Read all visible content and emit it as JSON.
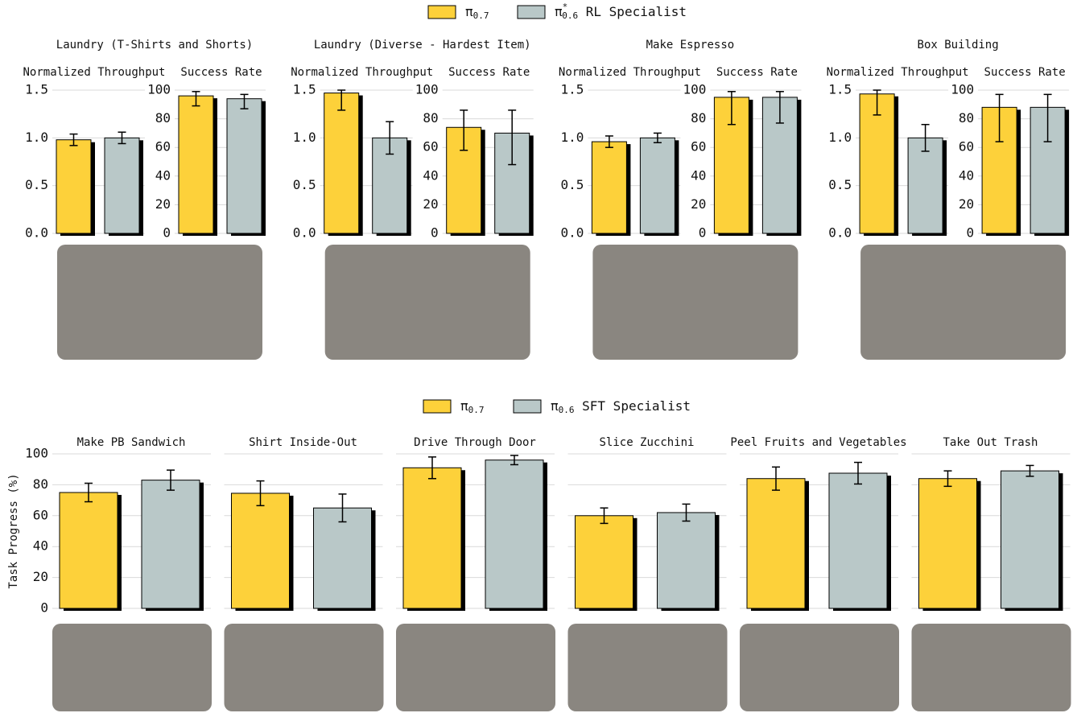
{
  "chart_data": [
    {
      "type": "bar",
      "series": [
        {
          "name": "π0.7",
          "color": "#fdd13a"
        },
        {
          "name": "π*0.6 RL Specialist",
          "color": "#b9c8c8"
        }
      ],
      "panels": [
        {
          "title": "Laundry (T-Shirts and Shorts)",
          "subplots": [
            {
              "title": "Normalized Throughput",
              "values": [
                0.98,
                1.0
              ],
              "yerr": [
                [
                  0.06,
                  0.06
                ],
                [
                  0.06,
                  0.06
                ]
              ],
              "ylim": [
                0,
                1.5
              ],
              "yticks": [
                {
                  "value": 0,
                  "label": "0.0"
                },
                0.5,
                {
                  "value": 1,
                  "label": "1.0"
                },
                1.5
              ]
            },
            {
              "title": "Success Rate",
              "values": [
                96,
                94
              ],
              "yerr": [
                [
                  7,
                  3
                ],
                [
                  7,
                  3
                ]
              ],
              "ylim": [
                0,
                100
              ],
              "yticks": [
                0,
                20,
                40,
                60,
                80,
                100
              ]
            }
          ]
        },
        {
          "title": "Laundry (Diverse - Hardest Item)",
          "subplots": [
            {
              "title": "Normalized Throughput",
              "values": [
                1.47,
                1.0
              ],
              "yerr": [
                [
                  0.18,
                  0.03
                ],
                [
                  0.17,
                  0.17
                ]
              ],
              "ylim": [
                0,
                1.5
              ],
              "yticks": [
                {
                  "value": 0,
                  "label": "0.0"
                },
                0.5,
                {
                  "value": 1,
                  "label": "1.0"
                },
                1.5
              ]
            },
            {
              "title": "Success Rate",
              "values": [
                74,
                70
              ],
              "yerr": [
                [
                  16,
                  12
                ],
                [
                  22,
                  16
                ]
              ],
              "ylim": [
                0,
                100
              ],
              "yticks": [
                0,
                20,
                40,
                60,
                80,
                100
              ]
            }
          ]
        },
        {
          "title": "Make Espresso",
          "subplots": [
            {
              "title": "Normalized Throughput",
              "values": [
                0.96,
                1.0
              ],
              "yerr": [
                [
                  0.06,
                  0.06
                ],
                [
                  0.05,
                  0.05
                ]
              ],
              "ylim": [
                0,
                1.5
              ],
              "yticks": [
                {
                  "value": 0,
                  "label": "0.0"
                },
                0.5,
                {
                  "value": 1,
                  "label": "1.0"
                },
                1.5
              ]
            },
            {
              "title": "Success Rate",
              "values": [
                95,
                95
              ],
              "yerr": [
                [
                  19,
                  4
                ],
                [
                  18,
                  4
                ]
              ],
              "ylim": [
                0,
                100
              ],
              "yticks": [
                0,
                20,
                40,
                60,
                80,
                100
              ]
            }
          ]
        },
        {
          "title": "Box Building",
          "subplots": [
            {
              "title": "Normalized Throughput",
              "values": [
                1.46,
                1.0
              ],
              "yerr": [
                [
                  0.22,
                  0.04
                ],
                [
                  0.14,
                  0.14
                ]
              ],
              "ylim": [
                0,
                1.5
              ],
              "yticks": [
                {
                  "value": 0,
                  "label": "0.0"
                },
                0.5,
                {
                  "value": 1,
                  "label": "1.0"
                },
                1.5
              ]
            },
            {
              "title": "Success Rate",
              "values": [
                88,
                88
              ],
              "yerr": [
                [
                  24,
                  9
                ],
                [
                  24,
                  9
                ]
              ],
              "ylim": [
                0,
                100
              ],
              "yticks": [
                0,
                20,
                40,
                60,
                80,
                100
              ]
            }
          ]
        }
      ]
    },
    {
      "type": "bar",
      "ylabel": "Task Progress (%)",
      "series": [
        {
          "name": "π0.7",
          "color": "#fdd13a"
        },
        {
          "name": "π0.6 SFT Specialist",
          "color": "#b9c8c8"
        }
      ],
      "ylim": [
        0,
        100
      ],
      "yticks": [
        0,
        20,
        40,
        60,
        80,
        100
      ],
      "panels": [
        {
          "title": "Make PB Sandwich",
          "values": [
            75,
            83
          ],
          "yerr": [
            [
              6,
              6
            ],
            [
              6.5,
              6.5
            ]
          ]
        },
        {
          "title": "Shirt Inside-Out",
          "values": [
            74.5,
            65
          ],
          "yerr": [
            [
              8,
              8
            ],
            [
              9,
              9
            ]
          ]
        },
        {
          "title": "Drive Through Door",
          "values": [
            91,
            96
          ],
          "yerr": [
            [
              7,
              7
            ],
            [
              3,
              3
            ]
          ]
        },
        {
          "title": "Slice Zucchini",
          "values": [
            60,
            62
          ],
          "yerr": [
            [
              5,
              5
            ],
            [
              5.5,
              5.5
            ]
          ]
        },
        {
          "title": "Peel Fruits and Vegetables",
          "values": [
            84,
            87.5
          ],
          "yerr": [
            [
              7.5,
              7.5
            ],
            [
              7,
              7
            ]
          ]
        },
        {
          "title": "Take Out Trash",
          "values": [
            84,
            89
          ],
          "yerr": [
            [
              5,
              5
            ],
            [
              3.5,
              3.5
            ]
          ]
        }
      ]
    }
  ]
}
